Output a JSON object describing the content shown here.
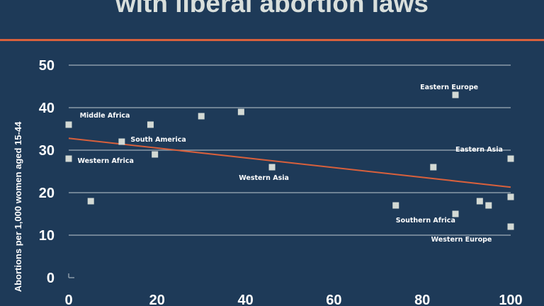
{
  "chart_data": {
    "type": "scatter",
    "title": "with liberal abortion laws",
    "xlabel": "",
    "ylabel": "Abortions per 1,000 women aged 15-44",
    "xlim": [
      0,
      100
    ],
    "ylim": [
      0,
      50
    ],
    "x_ticks": [
      "0",
      "20",
      "40",
      "60",
      "80",
      "100"
    ],
    "y_ticks": [
      "0",
      "10",
      "20",
      "30",
      "40",
      "50"
    ],
    "grid": "horizontal",
    "colors": {
      "background": "#1e3a58",
      "points": "#d3d9d4",
      "trendline": "#d8603c",
      "grid": "#8a9aa8"
    },
    "points": [
      {
        "x": 0,
        "y": 36
      },
      {
        "x": 0,
        "y": 28
      },
      {
        "x": 5,
        "y": 18
      },
      {
        "x": 12,
        "y": 32
      },
      {
        "x": 18.5,
        "y": 36
      },
      {
        "x": 19.5,
        "y": 29
      },
      {
        "x": 30,
        "y": 38
      },
      {
        "x": 39,
        "y": 39
      },
      {
        "x": 46,
        "y": 26
      },
      {
        "x": 74,
        "y": 17
      },
      {
        "x": 82.5,
        "y": 26
      },
      {
        "x": 87.5,
        "y": 43
      },
      {
        "x": 87.5,
        "y": 15
      },
      {
        "x": 93,
        "y": 18
      },
      {
        "x": 95,
        "y": 17
      },
      {
        "x": 100,
        "y": 28
      },
      {
        "x": 100,
        "y": 19
      },
      {
        "x": 100,
        "y": 12
      }
    ],
    "trendline": {
      "x": [
        0,
        100
      ],
      "y": [
        32.8,
        21.3
      ]
    },
    "annotations": [
      {
        "text": "Middle Africa",
        "x": 2.5,
        "y": 38.2
      },
      {
        "text": "South America",
        "x": 14,
        "y": 32.5
      },
      {
        "text": "Western Africa",
        "x": 2,
        "y": 27.5
      },
      {
        "text": "Western Asia",
        "x": 38.5,
        "y": 23.5
      },
      {
        "text": "Eastern Europe",
        "x": 79.5,
        "y": 44.8
      },
      {
        "text": "Eastern Asia",
        "x": 87.5,
        "y": 30.2
      },
      {
        "text": "Southern Africa",
        "x": 74,
        "y": 13.5
      },
      {
        "text": "Western Europe",
        "x": 82,
        "y": 9
      }
    ]
  }
}
